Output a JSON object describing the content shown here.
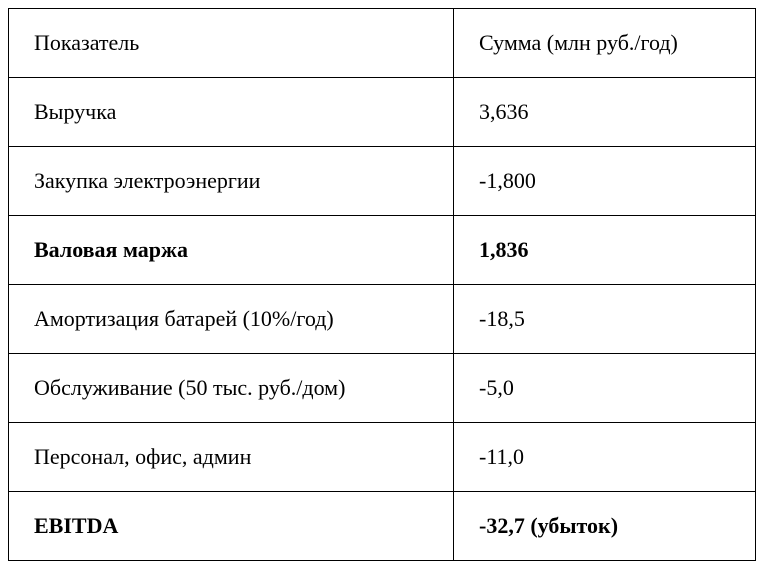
{
  "table": {
    "header": [
      "Показатель",
      "Сумма (млн руб./год)"
    ],
    "rows": [
      [
        "Выручка",
        "3,636"
      ],
      [
        "Закупка электроэнергии",
        "-1,800"
      ],
      [
        "Валовая маржа",
        "1,836"
      ],
      [
        "Амортизация батарей (10%/год)",
        "-18,5"
      ],
      [
        "Обслуживание (50 тыс. руб./дом)",
        "-5,0"
      ],
      [
        "Персонал, офис, админ",
        "-11,0"
      ],
      [
        "EBITDA",
        "-32,7 (убыток)"
      ]
    ]
  }
}
